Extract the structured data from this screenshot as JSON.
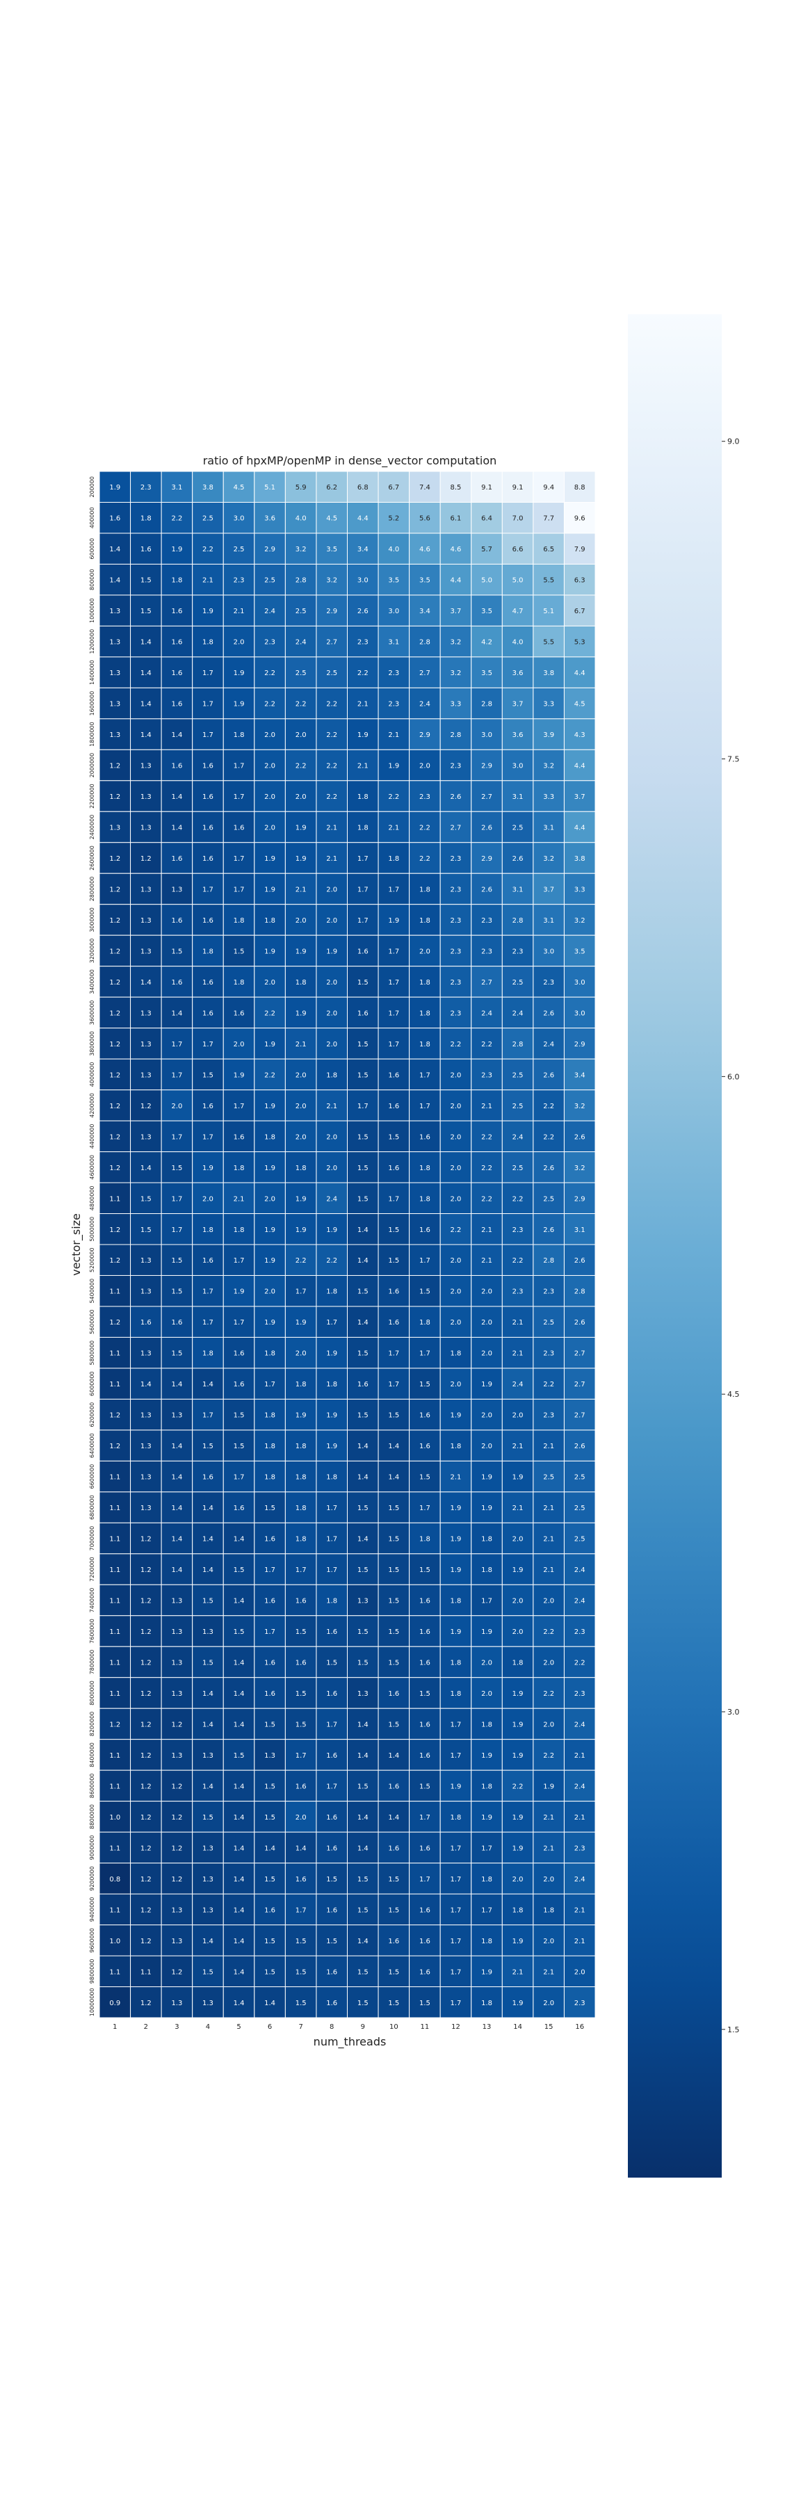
{
  "chart_data": {
    "type": "heatmap",
    "title": "ratio of hpxMP/openMP in dense_vector computation",
    "xlabel": "num_threads",
    "ylabel": "vector_size",
    "x": [
      "1",
      "2",
      "3",
      "4",
      "5",
      "6",
      "7",
      "8",
      "9",
      "10",
      "11",
      "12",
      "13",
      "14",
      "15",
      "16"
    ],
    "y": [
      "200000",
      "400000",
      "600000",
      "800000",
      "1000000",
      "1200000",
      "1400000",
      "1600000",
      "1800000",
      "2000000",
      "2200000",
      "2400000",
      "2600000",
      "2800000",
      "3000000",
      "3200000",
      "3400000",
      "3600000",
      "3800000",
      "4000000",
      "4200000",
      "4400000",
      "4600000",
      "4800000",
      "5000000",
      "5200000",
      "5400000",
      "5600000",
      "5800000",
      "6000000",
      "6200000",
      "6400000",
      "6600000",
      "6800000",
      "7000000",
      "7200000",
      "7400000",
      "7600000",
      "7800000",
      "8000000",
      "8200000",
      "8400000",
      "8600000",
      "8800000",
      "9000000",
      "9200000",
      "9400000",
      "9600000",
      "9800000",
      "10000000"
    ],
    "values": [
      [
        1.9,
        2.3,
        3.1,
        3.8,
        4.5,
        5.1,
        5.9,
        6.2,
        6.8,
        6.7,
        7.4,
        8.5,
        9.1,
        9.1,
        9.4,
        8.8
      ],
      [
        1.6,
        1.8,
        2.2,
        2.5,
        3.0,
        3.6,
        4.0,
        4.5,
        4.4,
        5.2,
        5.6,
        6.1,
        6.4,
        7.0,
        7.7,
        9.6
      ],
      [
        1.4,
        1.6,
        1.9,
        2.2,
        2.5,
        2.9,
        3.2,
        3.5,
        3.4,
        4.0,
        4.6,
        4.6,
        5.7,
        6.6,
        6.5,
        7.9
      ],
      [
        1.4,
        1.5,
        1.8,
        2.1,
        2.3,
        2.5,
        2.8,
        3.2,
        3.0,
        3.5,
        3.5,
        4.4,
        5.0,
        5.0,
        5.5,
        6.3
      ],
      [
        1.3,
        1.5,
        1.6,
        1.9,
        2.1,
        2.4,
        2.5,
        2.9,
        2.6,
        3.0,
        3.4,
        3.7,
        3.5,
        4.7,
        5.1,
        6.7
      ],
      [
        1.3,
        1.4,
        1.6,
        1.8,
        2.0,
        2.3,
        2.4,
        2.7,
        2.3,
        3.1,
        2.8,
        3.2,
        4.2,
        4.0,
        5.5,
        5.3
      ],
      [
        1.3,
        1.4,
        1.6,
        1.7,
        1.9,
        2.2,
        2.5,
        2.5,
        2.2,
        2.3,
        2.7,
        3.2,
        3.5,
        3.6,
        3.8,
        4.4
      ],
      [
        1.3,
        1.4,
        1.6,
        1.7,
        1.9,
        2.2,
        2.2,
        2.2,
        2.1,
        2.3,
        2.4,
        3.3,
        2.8,
        3.7,
        3.3,
        4.5
      ],
      [
        1.3,
        1.4,
        1.4,
        1.7,
        1.8,
        2.0,
        2.0,
        2.2,
        1.9,
        2.1,
        2.9,
        2.8,
        3.0,
        3.6,
        3.9,
        4.3
      ],
      [
        1.2,
        1.3,
        1.6,
        1.6,
        1.7,
        2.0,
        2.2,
        2.2,
        2.1,
        1.9,
        2.0,
        2.3,
        2.9,
        3.0,
        3.2,
        4.4
      ],
      [
        1.2,
        1.3,
        1.4,
        1.6,
        1.7,
        2.0,
        2.0,
        2.2,
        1.8,
        2.2,
        2.3,
        2.6,
        2.7,
        3.1,
        3.3,
        3.7
      ],
      [
        1.3,
        1.3,
        1.4,
        1.6,
        1.6,
        2.0,
        1.9,
        2.1,
        1.8,
        2.1,
        2.2,
        2.7,
        2.6,
        2.5,
        3.1,
        4.4
      ],
      [
        1.2,
        1.2,
        1.6,
        1.6,
        1.7,
        1.9,
        1.9,
        2.1,
        1.7,
        1.8,
        2.2,
        2.3,
        2.9,
        2.6,
        3.2,
        3.8
      ],
      [
        1.2,
        1.3,
        1.3,
        1.7,
        1.7,
        1.9,
        2.1,
        2.0,
        1.7,
        1.7,
        1.8,
        2.3,
        2.6,
        3.1,
        3.7,
        3.3
      ],
      [
        1.2,
        1.3,
        1.6,
        1.6,
        1.8,
        1.8,
        2.0,
        2.0,
        1.7,
        1.9,
        1.8,
        2.3,
        2.3,
        2.8,
        3.1,
        3.2
      ],
      [
        1.2,
        1.3,
        1.5,
        1.8,
        1.5,
        1.9,
        1.9,
        1.9,
        1.6,
        1.7,
        2.0,
        2.3,
        2.3,
        2.3,
        3.0,
        3.5
      ],
      [
        1.2,
        1.4,
        1.6,
        1.6,
        1.8,
        2.0,
        1.8,
        2.0,
        1.5,
        1.7,
        1.8,
        2.3,
        2.7,
        2.5,
        2.3,
        3.0
      ],
      [
        1.2,
        1.3,
        1.4,
        1.6,
        1.6,
        2.2,
        1.9,
        2.0,
        1.6,
        1.7,
        1.8,
        2.3,
        2.4,
        2.4,
        2.6,
        3.0
      ],
      [
        1.2,
        1.3,
        1.7,
        1.7,
        2.0,
        1.9,
        2.1,
        2.0,
        1.5,
        1.7,
        1.8,
        2.2,
        2.2,
        2.8,
        2.4,
        2.9
      ],
      [
        1.2,
        1.3,
        1.7,
        1.5,
        1.9,
        2.2,
        2.0,
        1.8,
        1.5,
        1.6,
        1.7,
        2.0,
        2.3,
        2.5,
        2.6,
        3.4
      ],
      [
        1.2,
        1.2,
        2.0,
        1.6,
        1.7,
        1.9,
        2.0,
        2.1,
        1.7,
        1.6,
        1.7,
        2.0,
        2.1,
        2.5,
        2.2,
        3.2
      ],
      [
        1.2,
        1.3,
        1.7,
        1.7,
        1.6,
        1.8,
        2.0,
        2.0,
        1.5,
        1.5,
        1.6,
        2.0,
        2.2,
        2.4,
        2.2,
        2.6
      ],
      [
        1.2,
        1.4,
        1.5,
        1.9,
        1.8,
        1.9,
        1.8,
        2.0,
        1.5,
        1.6,
        1.8,
        2.0,
        2.2,
        2.5,
        2.6,
        3.2
      ],
      [
        1.1,
        1.5,
        1.7,
        2.0,
        2.1,
        2.0,
        1.9,
        2.4,
        1.5,
        1.7,
        1.8,
        2.0,
        2.2,
        2.2,
        2.5,
        2.9
      ],
      [
        1.2,
        1.5,
        1.7,
        1.8,
        1.8,
        1.9,
        1.9,
        1.9,
        1.4,
        1.5,
        1.6,
        2.2,
        2.1,
        2.3,
        2.6,
        3.1
      ],
      [
        1.2,
        1.3,
        1.5,
        1.6,
        1.7,
        1.9,
        2.2,
        2.2,
        1.4,
        1.5,
        1.7,
        2.0,
        2.1,
        2.2,
        2.8,
        2.6
      ],
      [
        1.1,
        1.3,
        1.5,
        1.7,
        1.9,
        2.0,
        1.7,
        1.8,
        1.5,
        1.6,
        1.5,
        2.0,
        2.0,
        2.3,
        2.3,
        2.8
      ],
      [
        1.2,
        1.6,
        1.6,
        1.7,
        1.7,
        1.9,
        1.9,
        1.7,
        1.4,
        1.6,
        1.8,
        2.0,
        2.0,
        2.1,
        2.5,
        2.6
      ],
      [
        1.1,
        1.3,
        1.5,
        1.8,
        1.6,
        1.8,
        2.0,
        1.9,
        1.5,
        1.7,
        1.7,
        1.8,
        2.0,
        2.1,
        2.3,
        2.7
      ],
      [
        1.1,
        1.4,
        1.4,
        1.4,
        1.6,
        1.7,
        1.8,
        1.8,
        1.6,
        1.7,
        1.5,
        2.0,
        1.9,
        2.4,
        2.2,
        2.7
      ],
      [
        1.2,
        1.3,
        1.3,
        1.7,
        1.5,
        1.8,
        1.9,
        1.9,
        1.5,
        1.5,
        1.6,
        1.9,
        2.0,
        2.0,
        2.3,
        2.7
      ],
      [
        1.2,
        1.3,
        1.4,
        1.5,
        1.5,
        1.8,
        1.8,
        1.9,
        1.4,
        1.4,
        1.6,
        1.8,
        2.0,
        2.1,
        2.1,
        2.6
      ],
      [
        1.1,
        1.3,
        1.4,
        1.6,
        1.7,
        1.8,
        1.8,
        1.8,
        1.4,
        1.4,
        1.5,
        2.1,
        1.9,
        1.9,
        2.5,
        2.5
      ],
      [
        1.1,
        1.3,
        1.4,
        1.4,
        1.6,
        1.5,
        1.8,
        1.7,
        1.5,
        1.5,
        1.7,
        1.9,
        1.9,
        2.1,
        2.1,
        2.5
      ],
      [
        1.1,
        1.2,
        1.4,
        1.4,
        1.4,
        1.6,
        1.8,
        1.7,
        1.4,
        1.5,
        1.8,
        1.9,
        1.8,
        2.0,
        2.1,
        2.5
      ],
      [
        1.1,
        1.2,
        1.4,
        1.4,
        1.5,
        1.7,
        1.7,
        1.7,
        1.5,
        1.5,
        1.5,
        1.9,
        1.8,
        1.9,
        2.1,
        2.4
      ],
      [
        1.1,
        1.2,
        1.3,
        1.5,
        1.4,
        1.6,
        1.6,
        1.8,
        1.3,
        1.5,
        1.6,
        1.8,
        1.7,
        2.0,
        2.0,
        2.4
      ],
      [
        1.1,
        1.2,
        1.3,
        1.3,
        1.5,
        1.7,
        1.5,
        1.6,
        1.5,
        1.5,
        1.6,
        1.9,
        1.9,
        2.0,
        2.2,
        2.3
      ],
      [
        1.1,
        1.2,
        1.3,
        1.5,
        1.4,
        1.6,
        1.6,
        1.5,
        1.5,
        1.5,
        1.6,
        1.8,
        2.0,
        1.8,
        2.0,
        2.2
      ],
      [
        1.1,
        1.2,
        1.3,
        1.4,
        1.4,
        1.6,
        1.5,
        1.6,
        1.3,
        1.6,
        1.5,
        1.8,
        2.0,
        1.9,
        2.2,
        2.3
      ],
      [
        1.2,
        1.2,
        1.2,
        1.4,
        1.4,
        1.5,
        1.5,
        1.7,
        1.4,
        1.5,
        1.6,
        1.7,
        1.8,
        1.9,
        2.0,
        2.4
      ],
      [
        1.1,
        1.2,
        1.3,
        1.3,
        1.5,
        1.3,
        1.7,
        1.6,
        1.4,
        1.4,
        1.6,
        1.7,
        1.9,
        1.9,
        2.2,
        2.1
      ],
      [
        1.1,
        1.2,
        1.2,
        1.4,
        1.4,
        1.5,
        1.6,
        1.7,
        1.5,
        1.6,
        1.5,
        1.9,
        1.8,
        2.2,
        1.9,
        2.4
      ],
      [
        1.0,
        1.2,
        1.2,
        1.5,
        1.4,
        1.5,
        2.0,
        1.6,
        1.4,
        1.4,
        1.7,
        1.8,
        1.9,
        1.9,
        2.1,
        2.1
      ],
      [
        1.1,
        1.2,
        1.2,
        1.3,
        1.4,
        1.4,
        1.4,
        1.6,
        1.4,
        1.6,
        1.6,
        1.7,
        1.7,
        1.9,
        2.1,
        2.3
      ],
      [
        0.8,
        1.2,
        1.2,
        1.3,
        1.4,
        1.5,
        1.6,
        1.5,
        1.5,
        1.5,
        1.7,
        1.7,
        1.8,
        2.0,
        2.0,
        2.4
      ],
      [
        1.1,
        1.2,
        1.3,
        1.3,
        1.4,
        1.6,
        1.7,
        1.6,
        1.5,
        1.5,
        1.6,
        1.7,
        1.7,
        1.8,
        1.8,
        2.1
      ],
      [
        1.0,
        1.2,
        1.3,
        1.4,
        1.4,
        1.5,
        1.5,
        1.5,
        1.4,
        1.6,
        1.6,
        1.7,
        1.8,
        1.9,
        2.0,
        2.1
      ],
      [
        1.1,
        1.1,
        1.2,
        1.5,
        1.4,
        1.5,
        1.5,
        1.6,
        1.5,
        1.5,
        1.6,
        1.7,
        1.9,
        2.1,
        2.1,
        2.0
      ],
      [
        0.9,
        1.2,
        1.3,
        1.3,
        1.4,
        1.4,
        1.5,
        1.6,
        1.5,
        1.5,
        1.5,
        1.7,
        1.8,
        1.9,
        2.0,
        2.3
      ]
    ],
    "vmin": 0.8,
    "vmax": 9.6,
    "colormap": "Blues",
    "colorbar_ticks": [
      "1.5",
      "3.0",
      "4.5",
      "6.0",
      "7.5",
      "9.0"
    ],
    "grid": "white cell borders"
  }
}
